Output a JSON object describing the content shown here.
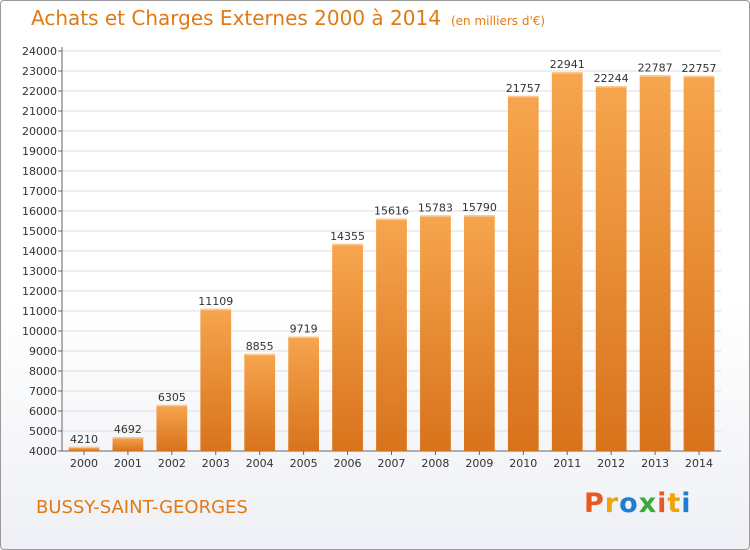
{
  "header": {
    "title": "Achats et Charges Externes 2000 à 2014",
    "unit": "(en milliers d'€)"
  },
  "footer": {
    "city": "BUSSY-SAINT-GEORGES",
    "logo": "Proxiti",
    "logo_colors": [
      "#e8581f",
      "#f0a20a",
      "#1e7fd0",
      "#3aa935",
      "#e8581f",
      "#f0a20a",
      "#1e7fd0"
    ]
  },
  "colors": {
    "bar_light": "#f6a54e",
    "bar_dark": "#d8731b",
    "accent": "#e07a16",
    "grid": "#dddddd"
  },
  "chart_data": {
    "type": "bar",
    "categories": [
      "2000",
      "2001",
      "2002",
      "2003",
      "2004",
      "2005",
      "2006",
      "2007",
      "2008",
      "2009",
      "2010",
      "2011",
      "2012",
      "2013",
      "2014"
    ],
    "values": [
      4210,
      4692,
      6305,
      11109,
      8855,
      9719,
      14355,
      15616,
      15783,
      15790,
      21757,
      22941,
      22244,
      22787,
      22757
    ],
    "yticks": [
      4000,
      5000,
      6000,
      7000,
      8000,
      9000,
      10000,
      11000,
      12000,
      13000,
      14000,
      15000,
      16000,
      17000,
      18000,
      19000,
      20000,
      21000,
      22000,
      23000,
      24000
    ],
    "ylim": [
      4000,
      24000
    ],
    "title": "Achats et Charges Externes 2000 à 2014",
    "xlabel": "",
    "ylabel": "",
    "grid": true,
    "legend": "none"
  }
}
